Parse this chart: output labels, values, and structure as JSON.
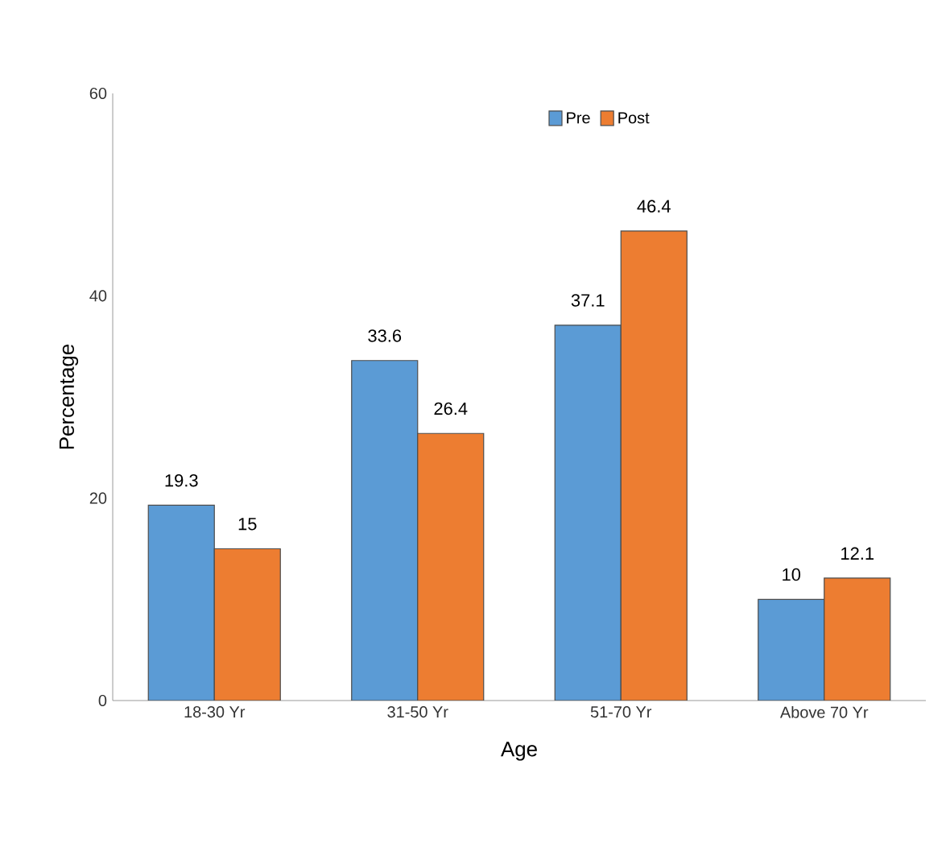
{
  "chart_data": {
    "type": "bar",
    "xlabel": "Age",
    "ylabel": "Percentage",
    "categories": [
      "18-30 Yr",
      "31-50 Yr",
      "51-70 Yr",
      "Above 70 Yr"
    ],
    "series": [
      {
        "name": "Pre",
        "color": "#5b9bd5",
        "values": [
          19.3,
          33.6,
          37.1,
          10
        ]
      },
      {
        "name": "Post",
        "color": "#ed7d31",
        "values": [
          15,
          26.4,
          46.4,
          12.1
        ]
      }
    ],
    "ylim": [
      0,
      60
    ],
    "yticks": [
      0,
      20,
      40,
      60
    ],
    "data_labels": true,
    "legend": "top",
    "grid": false
  }
}
